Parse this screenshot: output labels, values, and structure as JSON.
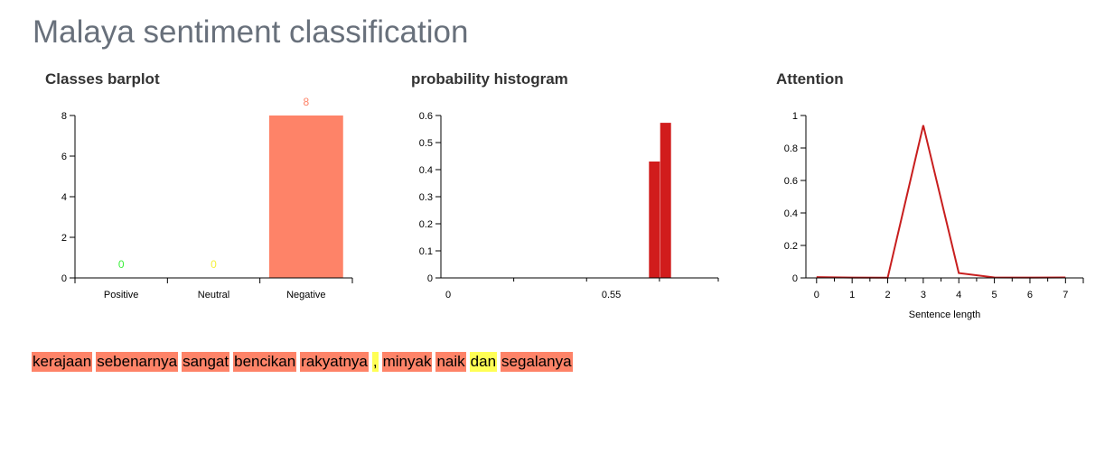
{
  "page": {
    "title": "Malaya sentiment classification"
  },
  "colors": {
    "bar": "#fe8368",
    "hist": "#d11c1c",
    "line": "#c81e1e",
    "positive_label": "#3cf03c",
    "neutral_label": "#f5f03c",
    "negative_label": "#fe8368",
    "word_negative": "#fe8368",
    "word_neutral": "#ffff55"
  },
  "chart_data": [
    {
      "id": "classes",
      "type": "bar",
      "title": "Classes barplot",
      "categories": [
        "Positive",
        "Neutral",
        "Negative"
      ],
      "values": [
        0,
        0,
        8
      ],
      "data_labels": [
        "0",
        "0",
        "8"
      ],
      "ylim": [
        0,
        8
      ],
      "yticks": [
        0,
        2,
        4,
        6,
        8
      ],
      "ytick_labels": [
        "0",
        "2",
        "4",
        "6",
        "8"
      ]
    },
    {
      "id": "hist",
      "type": "bar",
      "title": "probability histogram",
      "bars": [
        {
          "x": 0.762,
          "value": 0.43
        },
        {
          "x": 0.802,
          "value": 0.573
        }
      ],
      "xlim": [
        0,
        0.99
      ],
      "xticks": [
        0,
        0.55
      ],
      "xtick_labels": [
        "0",
        "0.55"
      ],
      "ylim": [
        0,
        0.6
      ],
      "yticks": [
        0,
        0.1,
        0.2,
        0.3,
        0.4,
        0.5,
        0.6
      ],
      "ytick_labels": [
        "0",
        "0.1",
        "0.2",
        "0.3",
        "0.4",
        "0.5",
        "0.6"
      ]
    },
    {
      "id": "attention",
      "type": "line",
      "title": "Attention",
      "xlabel": "Sentence length",
      "x": [
        0,
        1,
        2,
        3,
        4,
        5,
        6,
        7
      ],
      "values": [
        0.005,
        0.002,
        0.001,
        0.94,
        0.03,
        0.003,
        0.002,
        0.003
      ],
      "xlim": [
        -0.3,
        7.5
      ],
      "xtick_labels": [
        "0",
        "1",
        "2",
        "3",
        "4",
        "5",
        "6",
        "7"
      ],
      "ylim": [
        0,
        1
      ],
      "yticks": [
        0,
        0.2,
        0.4,
        0.6,
        0.8,
        1
      ],
      "ytick_labels": [
        "0",
        "0.2",
        "0.4",
        "0.6",
        "0.8",
        "1"
      ]
    }
  ],
  "sentence": {
    "words": [
      {
        "text": "kerajaan",
        "class": "negative"
      },
      {
        "text": "sebenarnya",
        "class": "negative"
      },
      {
        "text": "sangat",
        "class": "negative"
      },
      {
        "text": "bencikan",
        "class": "negative"
      },
      {
        "text": "rakyatnya",
        "class": "negative"
      },
      {
        "text": ",",
        "class": "neutral"
      },
      {
        "text": "minyak",
        "class": "negative"
      },
      {
        "text": "naik",
        "class": "negative"
      },
      {
        "text": "dan",
        "class": "neutral"
      },
      {
        "text": "segalanya",
        "class": "negative"
      }
    ]
  }
}
